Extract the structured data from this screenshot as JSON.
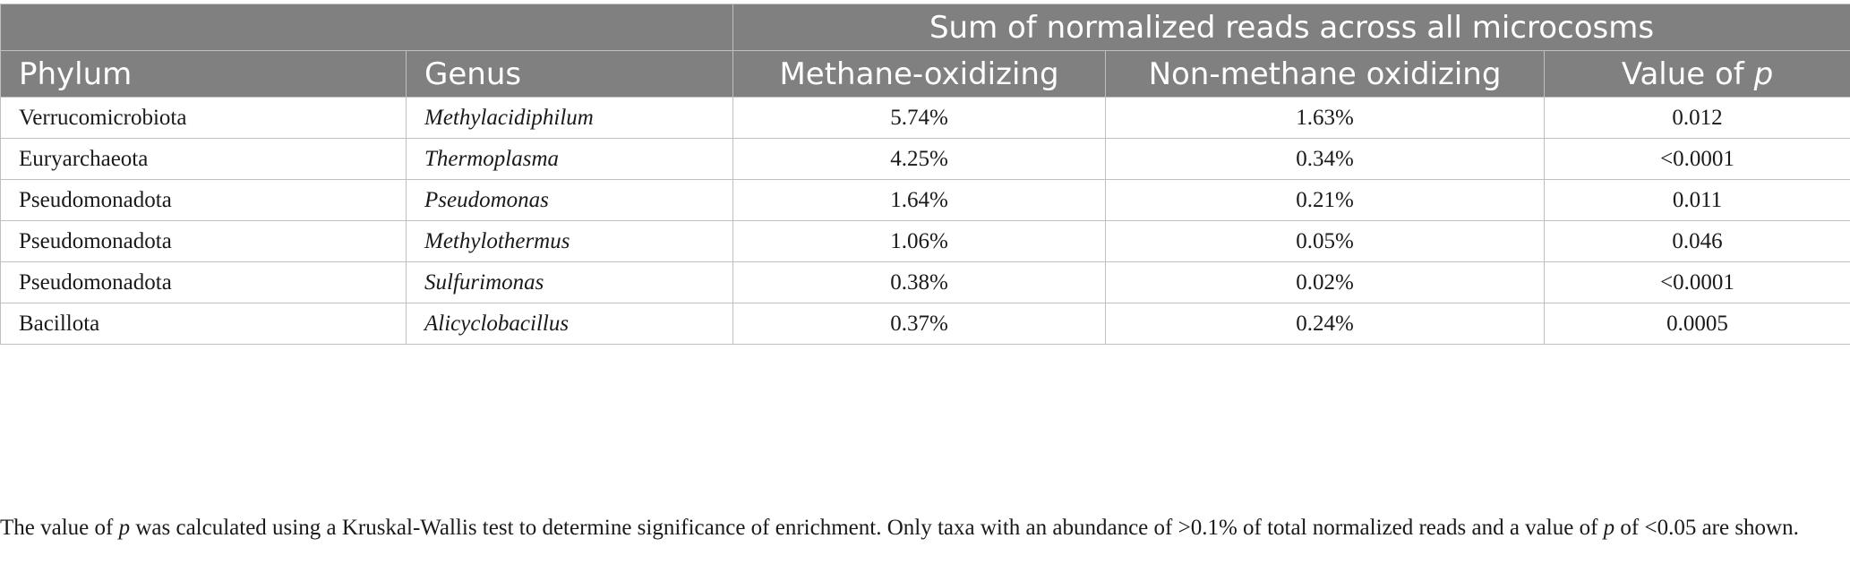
{
  "table": {
    "group_header": "Sum of normalized reads across all microcosms",
    "columns": {
      "phylum": "Phylum",
      "genus": "Genus",
      "methane": "Methane-oxidizing",
      "non_methane": "Non-methane oxidizing",
      "pvalue_prefix": "Value of ",
      "pvalue_var": "p"
    },
    "rows": [
      {
        "phylum": "Verrucomicrobiota",
        "genus": "Methylacidiphilum",
        "methane": "5.74%",
        "non_methane": "1.63%",
        "p": "0.012"
      },
      {
        "phylum": "Euryarchaeota",
        "genus": "Thermoplasma",
        "methane": "4.25%",
        "non_methane": "0.34%",
        "p": "<0.0001"
      },
      {
        "phylum": "Pseudomonadota",
        "genus": "Pseudomonas",
        "methane": "1.64%",
        "non_methane": "0.21%",
        "p": "0.011"
      },
      {
        "phylum": "Pseudomonadota",
        "genus": "Methylothermus",
        "methane": "1.06%",
        "non_methane": "0.05%",
        "p": "0.046"
      },
      {
        "phylum": "Pseudomonadota",
        "genus": "Sulfurimonas",
        "methane": "0.38%",
        "non_methane": "0.02%",
        "p": "<0.0001"
      },
      {
        "phylum": "Bacillota",
        "genus": "Alicyclobacillus",
        "methane": "0.37%",
        "non_methane": "0.24%",
        "p": "0.0005"
      }
    ]
  },
  "footnote": {
    "part1": "The value of ",
    "var1": "p",
    "part2": " was calculated using a Kruskal-Wallis test to determine significance of enrichment. Only taxa with an abundance of >0.1% of total normalized reads and a value of ",
    "var2": "p",
    "part3": " of <0.05 are shown."
  }
}
